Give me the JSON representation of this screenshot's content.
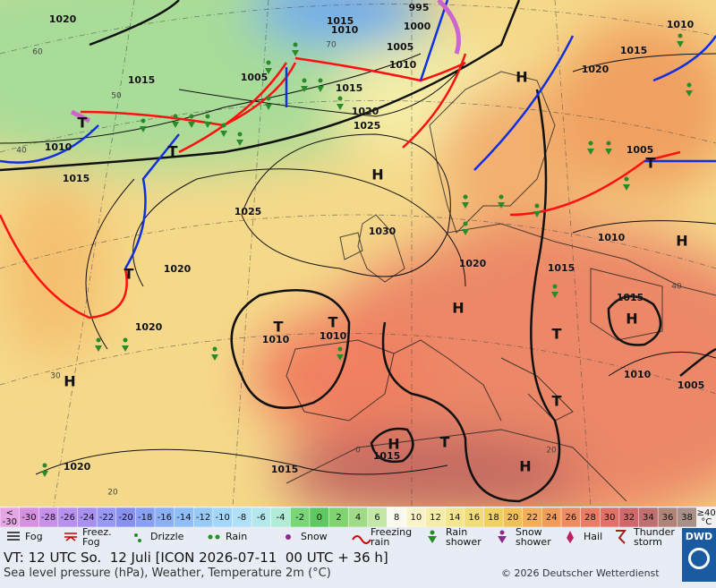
{
  "map": {
    "isobar_labels": [
      "1020",
      "1015",
      "995",
      "1010",
      "1000",
      "1005",
      "1010",
      "1005",
      "1015",
      "1015",
      "1020",
      "1025",
      "1020",
      "1015",
      "1010",
      "1005",
      "1010",
      "1015",
      "1025",
      "1030",
      "1020",
      "1015",
      "1010",
      "1020",
      "1015",
      "1020",
      "1010",
      "1010",
      "1010",
      "1005",
      "1015",
      "1020",
      "1015"
    ],
    "centers": [
      "H",
      "H",
      "H",
      "H",
      "H",
      "H",
      "H",
      "H",
      "T",
      "T",
      "T",
      "T",
      "T",
      "T",
      "T",
      "T",
      "T"
    ],
    "latitude_labels": [
      "60",
      "50",
      "40",
      "30",
      "20",
      "70",
      "40",
      "20",
      "0"
    ]
  },
  "legend": {
    "scale_low": [
      "<",
      "-30"
    ],
    "scale": [
      "-30",
      "-28",
      "-26",
      "-24",
      "-22",
      "-20",
      "-18",
      "-16",
      "-14",
      "-12",
      "-10",
      "-8",
      "-6",
      "-4",
      "-2",
      "0",
      "2",
      "4",
      "6",
      "8",
      "10",
      "12",
      "14",
      "16",
      "18",
      "20",
      "22",
      "24",
      "26",
      "28",
      "30",
      "32",
      "34",
      "36",
      "38"
    ],
    "scale_high": [
      "≥40",
      "°C"
    ],
    "scale_colors": [
      "#e6a6e6",
      "#d890e0",
      "#c890e8",
      "#b890f0",
      "#a890f0",
      "#9898f8",
      "#8890f0",
      "#8aa0f4",
      "#8cb0f6",
      "#90bef8",
      "#98caf8",
      "#a4d6f8",
      "#b0e0f8",
      "#b4e8ec",
      "#b0ecd8",
      "#78d878",
      "#60c860",
      "#80d470",
      "#a0dc88",
      "#c4e8a8",
      "#fafaf0",
      "#f8f4c8",
      "#f6eea8",
      "#f4e690",
      "#f2dc78",
      "#f0d060",
      "#f2c058",
      "#f2ae58",
      "#f09c5c",
      "#ee8c60",
      "#ea7c64",
      "#e07068",
      "#d0686a",
      "#c07070",
      "#b08478",
      "#a89088",
      "#f0f0f0"
    ],
    "weather": [
      [
        "Fog"
      ],
      [
        "Freez.",
        "Fog"
      ],
      [
        "Drizzle"
      ],
      [
        "Rain"
      ],
      [
        "Snow"
      ],
      [
        "Freezing",
        "rain"
      ],
      [
        "Rain",
        "shower"
      ],
      [
        "Snow",
        "shower"
      ],
      [
        "Hail"
      ],
      [
        "Thunder",
        "storm"
      ]
    ]
  },
  "footer": {
    "valid_time": "VT: 12 UTC So.  12 Juli [ICON 2026-07-11  00 UTC + 36 h]",
    "description": "Sea level pressure (hPa), Weather, Temperature 2m (°C)",
    "copyright": "© 2026 Deutscher Wetterdienst",
    "logo": "DWD"
  }
}
